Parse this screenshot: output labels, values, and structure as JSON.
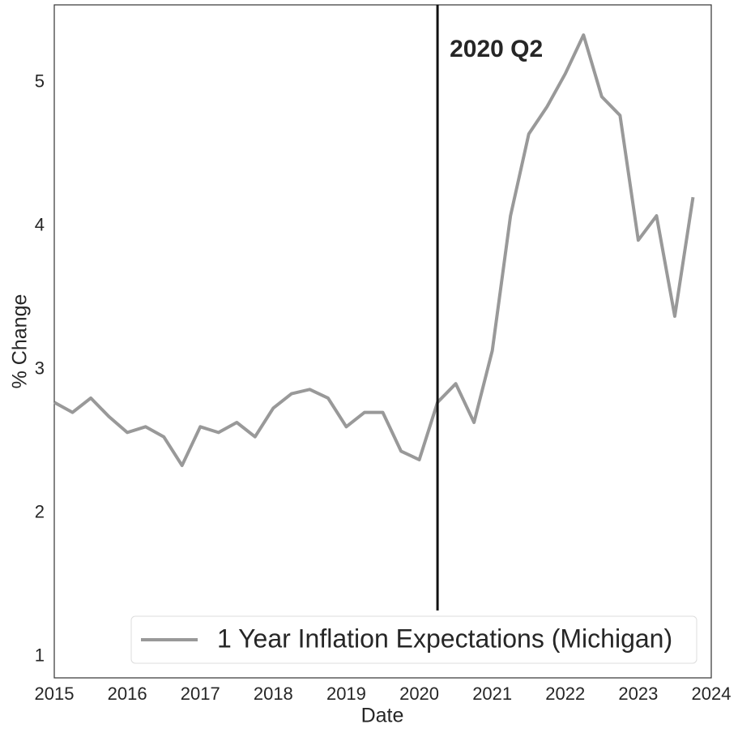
{
  "chart_data": {
    "type": "line",
    "x": [
      2015,
      2015.25,
      2015.5,
      2015.75,
      2016,
      2016.25,
      2016.5,
      2016.75,
      2017,
      2017.25,
      2017.5,
      2017.75,
      2018,
      2018.25,
      2018.5,
      2018.75,
      2019,
      2019.25,
      2019.5,
      2019.75,
      2020,
      2020.25,
      2020.5,
      2020.75,
      2021,
      2021.25,
      2021.5,
      2021.75,
      2022,
      2022.25,
      2022.5,
      2022.75,
      2023,
      2023.25,
      2023.5,
      2023.75
    ],
    "series": [
      {
        "name": "1 Year Inflation Expectations (Michigan)",
        "color": "#999999",
        "values": [
          2.77,
          2.7,
          2.8,
          2.67,
          2.56,
          2.6,
          2.53,
          2.33,
          2.6,
          2.56,
          2.63,
          2.53,
          2.73,
          2.83,
          2.86,
          2.8,
          2.6,
          2.7,
          2.7,
          2.43,
          2.37,
          2.77,
          2.9,
          2.63,
          3.13,
          4.07,
          4.64,
          4.83,
          5.06,
          5.33,
          4.9,
          4.77,
          3.9,
          4.07,
          3.37,
          4.2
        ]
      }
    ],
    "xlabel": "Date",
    "ylabel": "% Change",
    "xlim": [
      2015,
      2024
    ],
    "xticks": [
      2015,
      2016,
      2017,
      2018,
      2019,
      2020,
      2021,
      2022,
      2023,
      2024
    ],
    "ylim": [
      0.85,
      5.54
    ],
    "yticks": [
      1,
      2,
      3,
      4,
      5
    ],
    "vline": {
      "x": 2020.25,
      "ymin": 1.32,
      "ymax": 5.54,
      "color": "#111111"
    },
    "annotation": "2020 Q2",
    "legend": "lower right",
    "grid": false
  }
}
